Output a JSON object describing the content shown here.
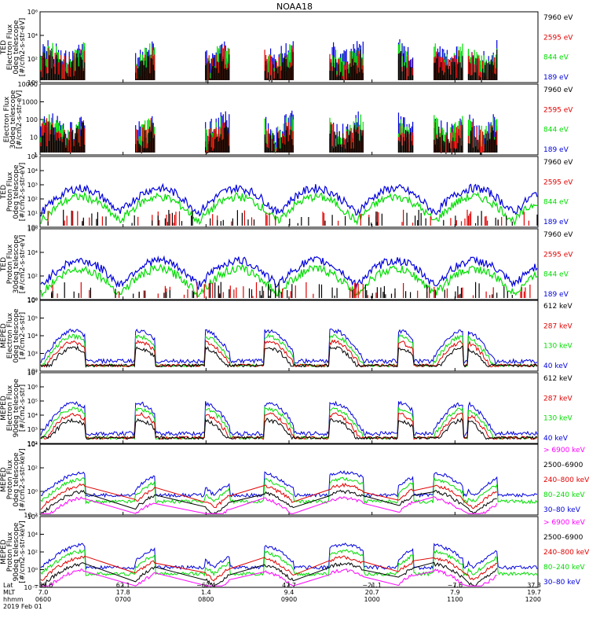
{
  "title": "NOAA18",
  "colors": {
    "black": "#000000",
    "red": "#e00000",
    "green": "#00dd00",
    "blue": "#0000dd",
    "magenta": "#ff00ff"
  },
  "panels": [
    {
      "id": "ted-e-0",
      "ylabel": [
        "TED",
        "Electron Flux",
        "0deg telescope",
        "[#/cm2-s-str-eV]"
      ],
      "yticks": [
        "10⁰",
        "10²",
        "10⁴",
        "10⁶"
      ],
      "ytick_extra": [
        "10²",
        "10³",
        "10⁴",
        "10⁵",
        "10⁶",
        "10¹"
      ],
      "legend": [
        {
          "text": "7960 eV",
          "color": "black"
        },
        {
          "text": "2595 eV",
          "color": "red"
        },
        {
          "text": "844 eV",
          "color": "green"
        },
        {
          "text": "189 eV",
          "color": "blue"
        }
      ]
    },
    {
      "id": "ted-e-30",
      "ylabel": [
        "Electron Flux",
        "30deg telescope",
        "[#/cm2-s-str-eV]"
      ],
      "yticks": [
        "1",
        "10",
        "100",
        "1000",
        "10000"
      ],
      "legend": [
        {
          "text": "7960 eV",
          "color": "black"
        },
        {
          "text": "2595 eV",
          "color": "red"
        },
        {
          "text": "844 eV",
          "color": "green"
        },
        {
          "text": "189 eV",
          "color": "blue"
        }
      ]
    },
    {
      "id": "ted-p-0",
      "ylabel": [
        "TED",
        "Proton Flux",
        "0deg telescope",
        "[#/cm2-s-str-eV]"
      ],
      "yticks": [
        "10⁰",
        "10¹",
        "10²",
        "10³",
        "10⁴",
        "10⁵"
      ],
      "legend": [
        {
          "text": "7960 eV",
          "color": "black"
        },
        {
          "text": "2595 eV",
          "color": "red"
        },
        {
          "text": "844 eV",
          "color": "green"
        },
        {
          "text": "189 eV",
          "color": "blue"
        }
      ]
    },
    {
      "id": "ted-p-30",
      "ylabel": [
        "TED",
        "Proton Flux",
        "30deg telescope",
        "[#/cm2-s-str-eV]"
      ],
      "yticks": [
        "10⁰",
        "10²",
        "10⁴",
        "10⁶"
      ],
      "legend": [
        {
          "text": "7960 eV",
          "color": "black"
        },
        {
          "text": "2595 eV",
          "color": "red"
        },
        {
          "text": "844 eV",
          "color": "green"
        },
        {
          "text": "189 eV",
          "color": "blue"
        }
      ]
    },
    {
      "id": "meped-e-0",
      "ylabel": [
        "MEPED",
        "Electron Flux",
        "0deg telescope",
        "[#/cm2-s-str]"
      ],
      "yticks": [
        "10²",
        "10³",
        "10⁴",
        "10⁵",
        "10⁶"
      ],
      "legend": [
        {
          "text": "612 keV",
          "color": "black"
        },
        {
          "text": "287 keV",
          "color": "red"
        },
        {
          "text": "130 keV",
          "color": "green"
        },
        {
          "text": "40 keV",
          "color": "blue"
        }
      ]
    },
    {
      "id": "meped-e-90",
      "ylabel": [
        "MEPED",
        "Electron Flux",
        "90deg telescope",
        "[#/cm2-s-str]"
      ],
      "yticks": [
        "10²",
        "10³",
        "10⁴",
        "10⁵",
        "10⁶",
        "10⁷"
      ],
      "legend": [
        {
          "text": "612 keV",
          "color": "black"
        },
        {
          "text": "287 keV",
          "color": "red"
        },
        {
          "text": "130 keV",
          "color": "green"
        },
        {
          "text": "40 keV",
          "color": "blue"
        }
      ]
    },
    {
      "id": "meped-p-0",
      "ylabel": [
        "MEPED",
        "Proton Flux",
        "0deg telescope",
        "[#/cm2-s-str-keV]"
      ],
      "yticks": [
        "10⁻²",
        "10⁰",
        "10²",
        "10⁴"
      ],
      "legend": [
        {
          "text": "> 6900 keV",
          "color": "magenta"
        },
        {
          "text": "2500–6900",
          "color": "black"
        },
        {
          "text": "240–800 keV",
          "color": "red"
        },
        {
          "text": "80–240 keV",
          "color": "green"
        },
        {
          "text": "30–80 keV",
          "color": "blue"
        }
      ]
    },
    {
      "id": "meped-p-90",
      "ylabel": [
        "MEPED",
        "Proton Flux",
        "90deg telescope",
        "[#/cm2-s-str-keV]"
      ],
      "yticks": [
        "10⁻²",
        "10⁰",
        "10²",
        "10⁴",
        "10⁶"
      ],
      "legend": [
        {
          "text": "> 6900 keV",
          "color": "magenta"
        },
        {
          "text": "2500–6900",
          "color": "black"
        },
        {
          "text": "240–800 keV",
          "color": "red"
        },
        {
          "text": "80–240 keV",
          "color": "green"
        },
        {
          "text": "30–80 keV",
          "color": "blue"
        }
      ]
    }
  ],
  "xaxis": {
    "row_labels": [
      "Lat",
      "MLT",
      "hhmm"
    ],
    "date": "2019 Feb 01",
    "ticks": [
      {
        "lat": "−39.6",
        "mlt": "7.0",
        "hhmm": "0600"
      },
      {
        "lat": "62.1",
        "mlt": "17.8",
        "hhmm": "0700"
      },
      {
        "lat": "−67.4",
        "mlt": "1.4",
        "hhmm": "0800"
      },
      {
        "lat": "47.7",
        "mlt": "9.4",
        "hhmm": "0900"
      },
      {
        "lat": "−21.1",
        "mlt": "20.7",
        "hhmm": "1000"
      },
      {
        "lat": "−7.6",
        "mlt": "7.9",
        "hhmm": "1100"
      },
      {
        "lat": "37.3",
        "mlt": "19.7",
        "hhmm": "1200"
      }
    ]
  },
  "chart_data": {
    "type": "line",
    "title": "NOAA18",
    "x_ticks_hhmm": [
      "0600",
      "0700",
      "0800",
      "0900",
      "1000",
      "1100",
      "1200"
    ],
    "note_series_by_panel": "Each panel shows 4–5 flux channels over 0600–1200 UT on a log scale",
    "series": [
      {
        "panel": "TED Electron 0deg",
        "name": "189 eV",
        "pattern_peaks_hhmm": [
          "0615",
          "0715",
          "0740",
          "0845",
          "0915",
          "1025",
          "1045",
          "1125"
        ],
        "peak_log10": [
          2.5,
          2.5,
          4,
          3,
          3,
          3,
          2.5,
          5.5
        ]
      },
      {
        "panel": "TED Proton 0deg",
        "name": "189 eV",
        "pattern_peaks_hhmm": [
          "0620",
          "0735",
          "0800",
          "0850",
          "0915",
          "1045",
          "1115"
        ],
        "peak_log10": [
          4,
          4,
          3.5,
          4,
          3.5,
          4,
          3.5
        ]
      },
      {
        "panel": "MEPED Proton 0deg",
        "name": "30–80 keV",
        "pattern_peaks_hhmm": [
          "0620",
          "0735",
          "0830",
          "0845",
          "0930",
          "1040",
          "1100"
        ],
        "peak_log10": [
          3.5,
          3,
          0.5,
          2.5,
          2,
          3,
          2
        ]
      }
    ]
  }
}
